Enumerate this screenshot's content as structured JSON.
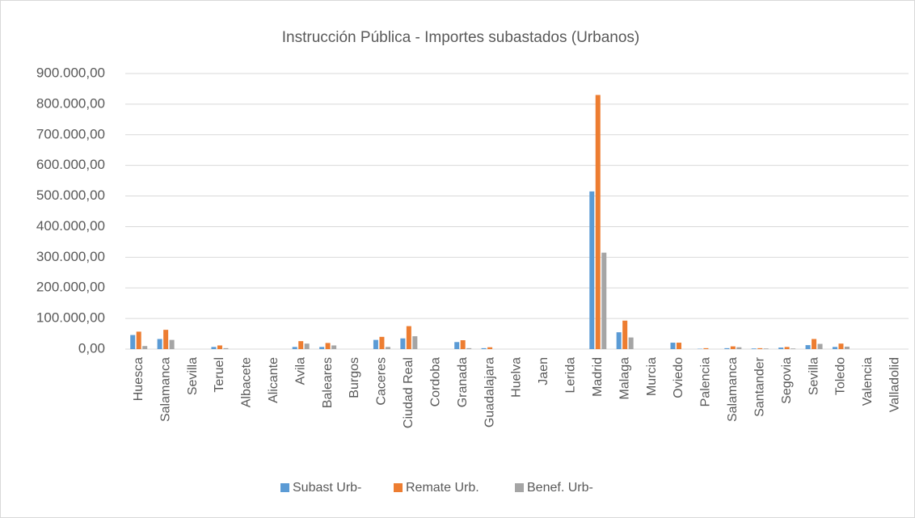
{
  "chart_data": {
    "type": "bar",
    "title": "Instrucción Pública - Importes subastados (Urbanos)",
    "categories": [
      "Huesca",
      "Salamanca",
      "Sevilla",
      "Teruel",
      "Albacete",
      "Alicante",
      "Avila",
      "Baleares",
      "Burgos",
      "Caceres",
      "Ciudad Real",
      "Cordoba",
      "Granada",
      "Guadalajara",
      "Huelva",
      "Jaen",
      "Lerida",
      "Madrid",
      "Malaga",
      "Murcia",
      "Oviedo",
      "Palencia",
      "Salamanca",
      "Santander",
      "Segovia",
      "Sevilla",
      "Toledo",
      "Valencia",
      "Valladolid"
    ],
    "series": [
      {
        "name": "Subast Urb-",
        "color": "#5b9bd5",
        "values": [
          46000,
          33000,
          0,
          7000,
          0,
          0,
          7000,
          7000,
          0,
          30000,
          35000,
          0,
          23000,
          3000,
          0,
          0,
          0,
          515000,
          55000,
          0,
          21000,
          1000,
          3000,
          2000,
          5000,
          13000,
          7000,
          0,
          0
        ]
      },
      {
        "name": "Remate Urb.",
        "color": "#ed7d31",
        "values": [
          57000,
          63000,
          0,
          12000,
          0,
          0,
          26000,
          20000,
          0,
          40000,
          75000,
          0,
          29000,
          6000,
          0,
          0,
          0,
          830000,
          93000,
          0,
          21000,
          3000,
          9000,
          3000,
          7000,
          33000,
          18000,
          0,
          0
        ]
      },
      {
        "name": "Benef. Urb-",
        "color": "#a5a5a5",
        "values": [
          10000,
          30000,
          0,
          3000,
          0,
          0,
          18000,
          12000,
          0,
          7000,
          42000,
          0,
          3000,
          0,
          0,
          0,
          0,
          315000,
          38000,
          0,
          0,
          0,
          6000,
          2000,
          2000,
          17000,
          8000,
          0,
          0
        ]
      }
    ],
    "ylim": [
      0,
      900000
    ],
    "yticks": [
      {
        "value": 0,
        "label": "0,00"
      },
      {
        "value": 100000,
        "label": "100.000,00"
      },
      {
        "value": 200000,
        "label": "200.000,00"
      },
      {
        "value": 300000,
        "label": "300.000,00"
      },
      {
        "value": 400000,
        "label": "400.000,00"
      },
      {
        "value": 500000,
        "label": "500.000,00"
      },
      {
        "value": 600000,
        "label": "600.000,00"
      },
      {
        "value": 700000,
        "label": "700.000,00"
      },
      {
        "value": 800000,
        "label": "800.000,00"
      },
      {
        "value": 900000,
        "label": "900.000,00"
      }
    ],
    "grid": true,
    "legend": "bottom"
  }
}
